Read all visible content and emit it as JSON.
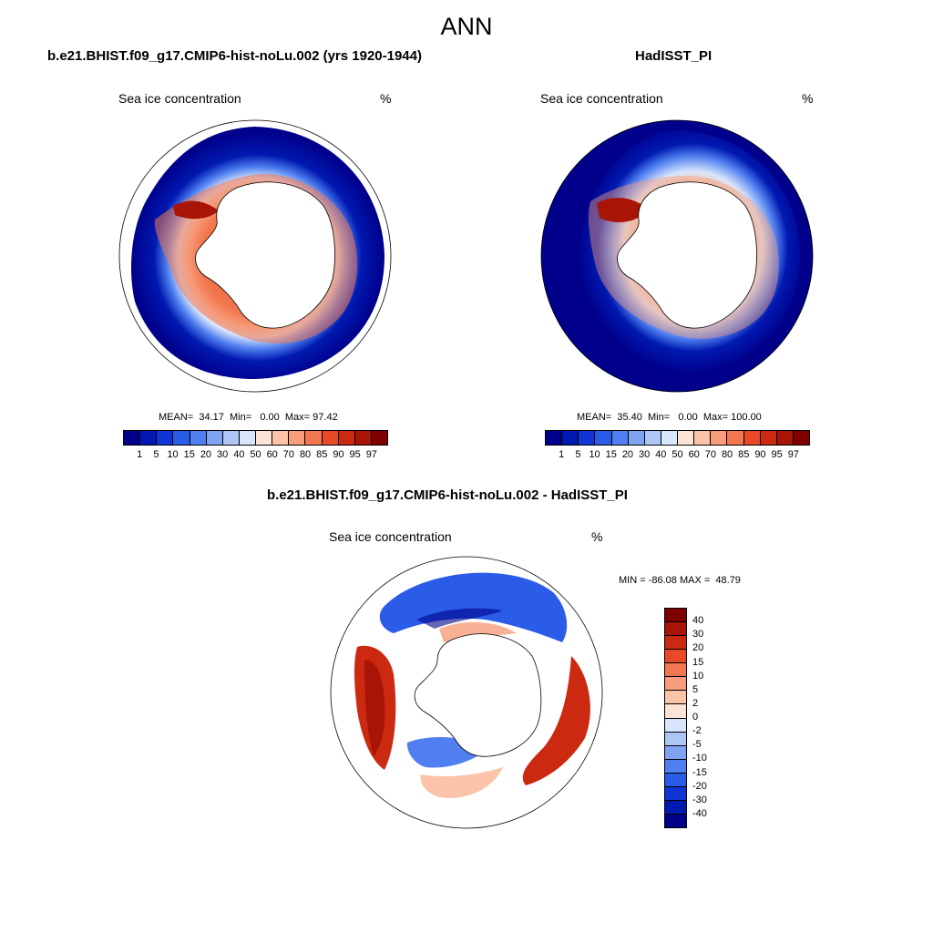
{
  "figure": {
    "title": "ANN"
  },
  "panels": [
    {
      "title": "b.e21.BHIST.f09_g17.CMIP6-hist-noLu.002 (yrs 1920-1944)",
      "variable": "Sea ice concentration",
      "units": "%",
      "stats": {
        "mean_label": "MEAN=",
        "mean": "34.17",
        "min_label": "Min=",
        "min": "0.00",
        "max_label": "Max=",
        "max": "97.42"
      }
    },
    {
      "title": "HadISST_PI",
      "variable": "Sea ice concentration",
      "units": "%",
      "stats": {
        "mean_label": "MEAN=",
        "mean": "35.40",
        "min_label": "Min=",
        "min": "0.00",
        "max_label": "Max=",
        "max": "100.00"
      }
    },
    {
      "title": "b.e21.BHIST.f09_g17.CMIP6-hist-noLu.002 - HadISST_PI",
      "variable": "Sea ice concentration",
      "units": "%",
      "range_text": "MIN = -86.08 MAX =  48.79"
    }
  ],
  "colorbar_abs": {
    "labels": [
      "1",
      "5",
      "10",
      "15",
      "20",
      "30",
      "40",
      "50",
      "60",
      "70",
      "80",
      "85",
      "90",
      "95",
      "97"
    ],
    "colors": [
      "#00008b",
      "#0019b0",
      "#1034d6",
      "#2a5ce8",
      "#4f7ff0",
      "#7fa2f2",
      "#aec6f6",
      "#d8e6fb",
      "#fde3d6",
      "#fbc3a8",
      "#f79d7b",
      "#f2764f",
      "#e84a28",
      "#cc2a10",
      "#a81406",
      "#800000"
    ]
  },
  "colorbar_diff": {
    "labels": [
      "40",
      "30",
      "20",
      "15",
      "10",
      "5",
      "2",
      "0",
      "-2",
      "-5",
      "-10",
      "-15",
      "-20",
      "-30",
      "-40"
    ],
    "colors": [
      "#800000",
      "#a81406",
      "#cc2a10",
      "#e84a28",
      "#f2764f",
      "#f79d7b",
      "#fbc3a8",
      "#fde3d6",
      "#d8e6fb",
      "#aec6f6",
      "#7fa2f2",
      "#4f7ff0",
      "#2a5ce8",
      "#1034d6",
      "#0019b0",
      "#00008b"
    ]
  },
  "colors": {
    "ocean_far": "#00008b",
    "ice_high": "#cc2a10",
    "ice_mid": "#f79d7b",
    "neutral": "#ffffff"
  }
}
